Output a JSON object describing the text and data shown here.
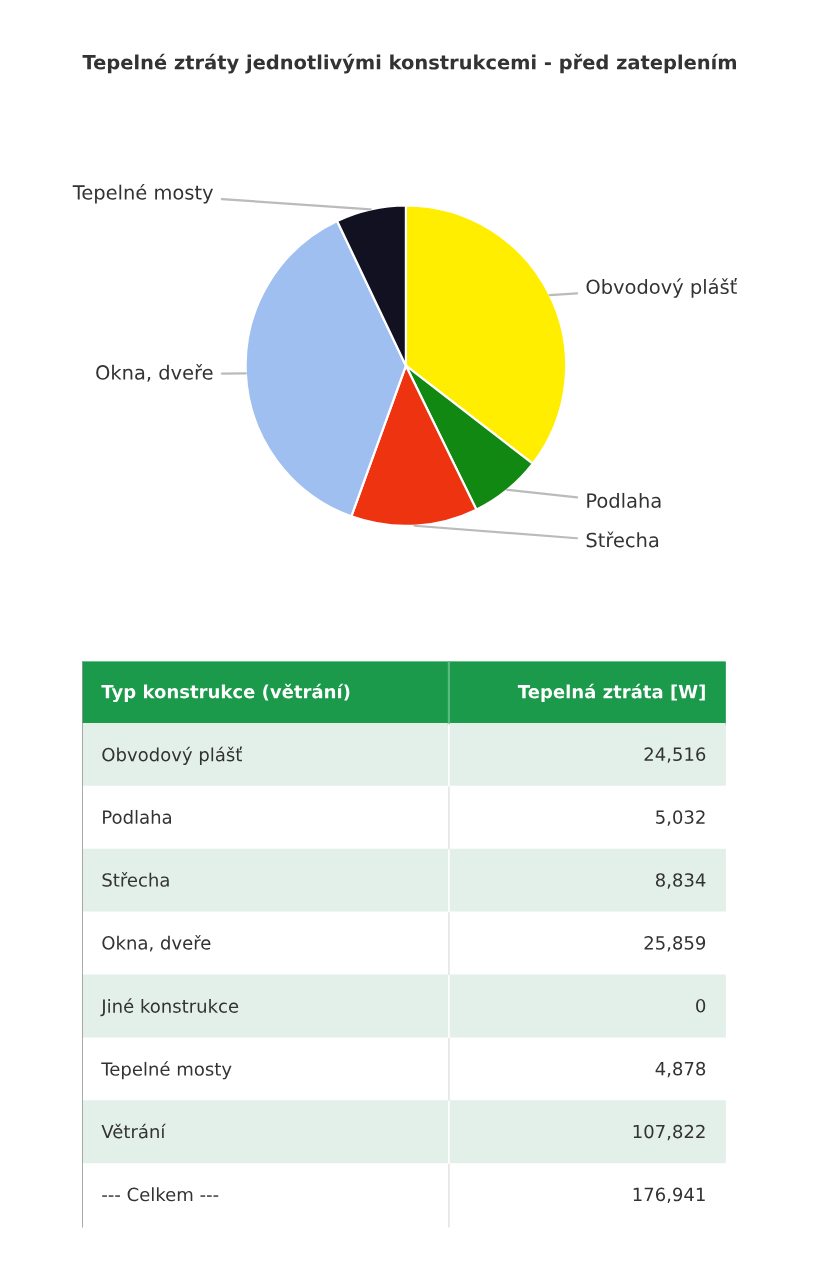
{
  "chart_data": [
    {
      "type": "pie",
      "title": "Tepelné ztráty jednotlivými konstrukcemi - před zateplením",
      "categories": [
        "Obvodový plášť",
        "Podlaha",
        "Střecha",
        "Okna, dveře",
        "Tepelné mosty"
      ],
      "values": [
        35.47,
        7.28,
        12.78,
        37.41,
        7.06
      ],
      "colors": [
        "#ffee00",
        "#118811",
        "#ee3311",
        "#9fbff0",
        "#111122"
      ],
      "legend": false
    },
    {
      "type": "other",
      "annotations": [
        "Typ konstrukce (větrání)",
        "Tepelná ztráta [W]"
      ],
      "categories": [
        "Obvodový plášť",
        "Podlaha",
        "Střecha",
        "Okna, dveře",
        "Jiné konstrukce",
        "Tepelné mosty",
        "Větrání",
        "--- Celkem ---"
      ],
      "values": [
        24516,
        5032,
        8834,
        25859,
        0,
        4878,
        107822,
        176941
      ],
      "value_labels": [
        "24,516",
        "5,032",
        "8,834",
        "25,859",
        "0",
        "4,878",
        "107,822",
        "176,941"
      ]
    }
  ]
}
